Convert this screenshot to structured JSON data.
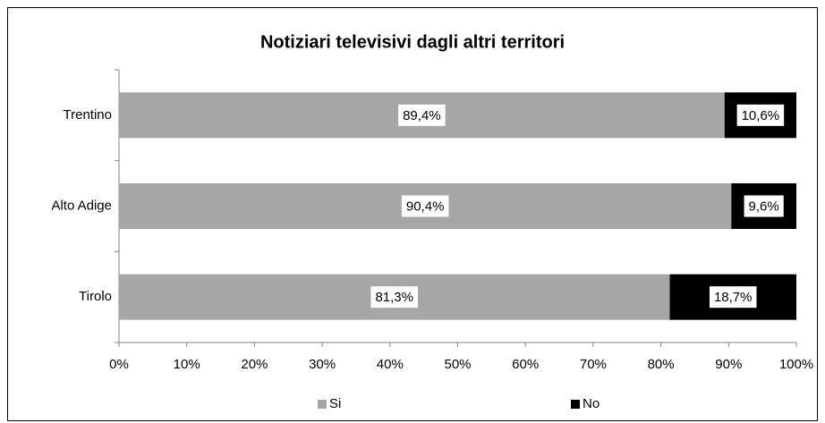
{
  "chart_data": {
    "type": "stacked_bar_horizontal",
    "title": "Notiziari televisivi dagli altri territori",
    "categories": [
      "Trentino",
      "Alto Adige",
      "Tirolo"
    ],
    "series": [
      {
        "name": "Si",
        "color": "#a6a6a6",
        "values": [
          89.4,
          90.4,
          81.3
        ],
        "value_labels": [
          "89,4%",
          "90,4%",
          "81,3%"
        ]
      },
      {
        "name": "No",
        "color": "#000000",
        "values": [
          10.6,
          9.6,
          18.7
        ],
        "value_labels": [
          "10,6%",
          "9,6%",
          "18,7%"
        ]
      }
    ],
    "xlim": [
      0,
      100
    ],
    "xticks": [
      {
        "value": 0,
        "label": "0%"
      },
      {
        "value": 10,
        "label": "10%"
      },
      {
        "value": 20,
        "label": "20%"
      },
      {
        "value": 30,
        "label": "30%"
      },
      {
        "value": 40,
        "label": "40%"
      },
      {
        "value": 50,
        "label": "50%"
      },
      {
        "value": 60,
        "label": "60%"
      },
      {
        "value": 70,
        "label": "70%"
      },
      {
        "value": 80,
        "label": "80%"
      },
      {
        "value": 90,
        "label": "90%"
      },
      {
        "value": 100,
        "label": "100%"
      }
    ],
    "legend": "bottom"
  }
}
